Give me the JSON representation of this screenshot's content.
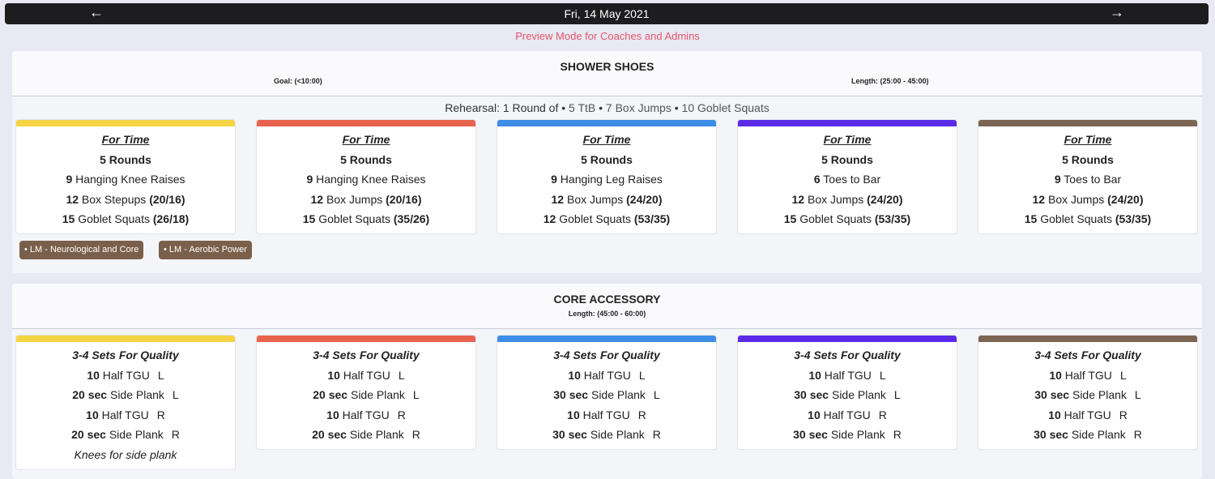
{
  "nav": {
    "date": "Fri, 14 May 2021",
    "prev_icon": "←",
    "next_icon": "→",
    "preview_text": "Preview Mode for Coaches and Admins"
  },
  "colors": [
    "#f4d443",
    "#e8644f",
    "#3d8ce8",
    "#5b2ae8",
    "#7a6452"
  ],
  "section1": {
    "title": "SHOWER SHOES",
    "goal": "Goal: (<10:00)",
    "length": "Length: (25:00 - 45:00)",
    "rehearsal_prefix": "Rehearsal: 1 Round of",
    "rehearsal_items": [
      "5 TtB",
      "7 Box Jumps",
      "10 Goblet Squats"
    ],
    "tags": [
      "• LM - Neurological and Core",
      "• LM - Aerobic Power"
    ],
    "cards": [
      {
        "format": "For Time",
        "rounds": "5 Rounds",
        "lines": [
          {
            "n": "9",
            "m": "Hanging Knee Raises",
            "w": ""
          },
          {
            "n": "12",
            "m": "Box Stepups",
            "w": "(20/16)"
          },
          {
            "n": "15",
            "m": "Goblet Squats",
            "w": "(26/18)"
          }
        ]
      },
      {
        "format": "For Time",
        "rounds": "5 Rounds",
        "lines": [
          {
            "n": "9",
            "m": "Hanging Knee Raises",
            "w": ""
          },
          {
            "n": "12",
            "m": "Box Jumps",
            "w": "(20/16)"
          },
          {
            "n": "15",
            "m": "Goblet Squats",
            "w": "(35/26)"
          }
        ]
      },
      {
        "format": "For Time",
        "rounds": "5 Rounds",
        "lines": [
          {
            "n": "9",
            "m": "Hanging Leg Raises",
            "w": ""
          },
          {
            "n": "12",
            "m": "Box Jumps",
            "w": "(24/20)"
          },
          {
            "n": "12",
            "m": "Goblet Squats",
            "w": "(53/35)"
          }
        ]
      },
      {
        "format": "For Time",
        "rounds": "5 Rounds",
        "lines": [
          {
            "n": "6",
            "m": "Toes to Bar",
            "w": ""
          },
          {
            "n": "12",
            "m": "Box Jumps",
            "w": "(24/20)"
          },
          {
            "n": "15",
            "m": "Goblet Squats",
            "w": "(53/35)"
          }
        ]
      },
      {
        "format": "For Time",
        "rounds": "5 Rounds",
        "lines": [
          {
            "n": "9",
            "m": "Toes to Bar",
            "w": ""
          },
          {
            "n": "12",
            "m": "Box Jumps",
            "w": "(24/20)"
          },
          {
            "n": "15",
            "m": "Goblet Squats",
            "w": "(53/35)"
          }
        ]
      }
    ]
  },
  "section2": {
    "title": "CORE ACCESSORY",
    "length": "Length: (45:00 - 60:00)",
    "cards": [
      {
        "format": "3-4 Sets For Quality",
        "lines": [
          {
            "n": "10",
            "m": "Half TGU",
            "s": "L"
          },
          {
            "n": "20 sec",
            "m": "Side Plank",
            "s": "L"
          },
          {
            "n": "10",
            "m": "Half TGU",
            "s": "R"
          },
          {
            "n": "20 sec",
            "m": "Side Plank",
            "s": "R"
          }
        ],
        "note": "Knees for side plank"
      },
      {
        "format": "3-4 Sets For Quality",
        "lines": [
          {
            "n": "10",
            "m": "Half TGU",
            "s": "L"
          },
          {
            "n": "20 sec",
            "m": "Side Plank",
            "s": "L"
          },
          {
            "n": "10",
            "m": "Half TGU",
            "s": "R"
          },
          {
            "n": "20 sec",
            "m": "Side Plank",
            "s": "R"
          }
        ],
        "note": ""
      },
      {
        "format": "3-4 Sets For Quality",
        "lines": [
          {
            "n": "10",
            "m": "Half TGU",
            "s": "L"
          },
          {
            "n": "30 sec",
            "m": "Side Plank",
            "s": "L"
          },
          {
            "n": "10",
            "m": "Half TGU",
            "s": "R"
          },
          {
            "n": "30 sec",
            "m": "Side Plank",
            "s": "R"
          }
        ],
        "note": ""
      },
      {
        "format": "3-4 Sets For Quality",
        "lines": [
          {
            "n": "10",
            "m": "Half TGU",
            "s": "L"
          },
          {
            "n": "30 sec",
            "m": "Side Plank",
            "s": "L"
          },
          {
            "n": "10",
            "m": "Half TGU",
            "s": "R"
          },
          {
            "n": "30 sec",
            "m": "Side Plank",
            "s": "R"
          }
        ],
        "note": ""
      },
      {
        "format": "3-4 Sets For Quality",
        "lines": [
          {
            "n": "10",
            "m": "Half TGU",
            "s": "L"
          },
          {
            "n": "30 sec",
            "m": "Side Plank",
            "s": "L"
          },
          {
            "n": "10",
            "m": "Half TGU",
            "s": "R"
          },
          {
            "n": "30 sec",
            "m": "Side Plank",
            "s": "R"
          }
        ],
        "note": ""
      }
    ]
  }
}
